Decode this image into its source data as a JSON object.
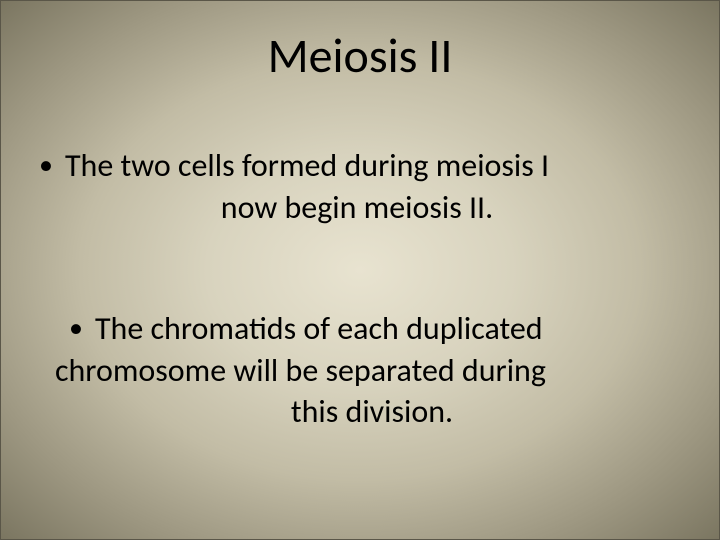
{
  "slide": {
    "title": "Meiosis II",
    "bullets": [
      {
        "line1": "The two cells formed during meiosis I",
        "line2": "now begin meiosis II."
      },
      {
        "line1": "The chromatids of each duplicated",
        "line2": "chromosome will be separated during",
        "line3": "this division."
      }
    ]
  },
  "style": {
    "title_fontsize": 48,
    "body_fontsize": 32,
    "text_color": "#000000",
    "background_gradient": {
      "center": "#e8e3d0",
      "mid": "#c2bca5",
      "edge": "#7a7560"
    },
    "font_family": "Calibri"
  }
}
